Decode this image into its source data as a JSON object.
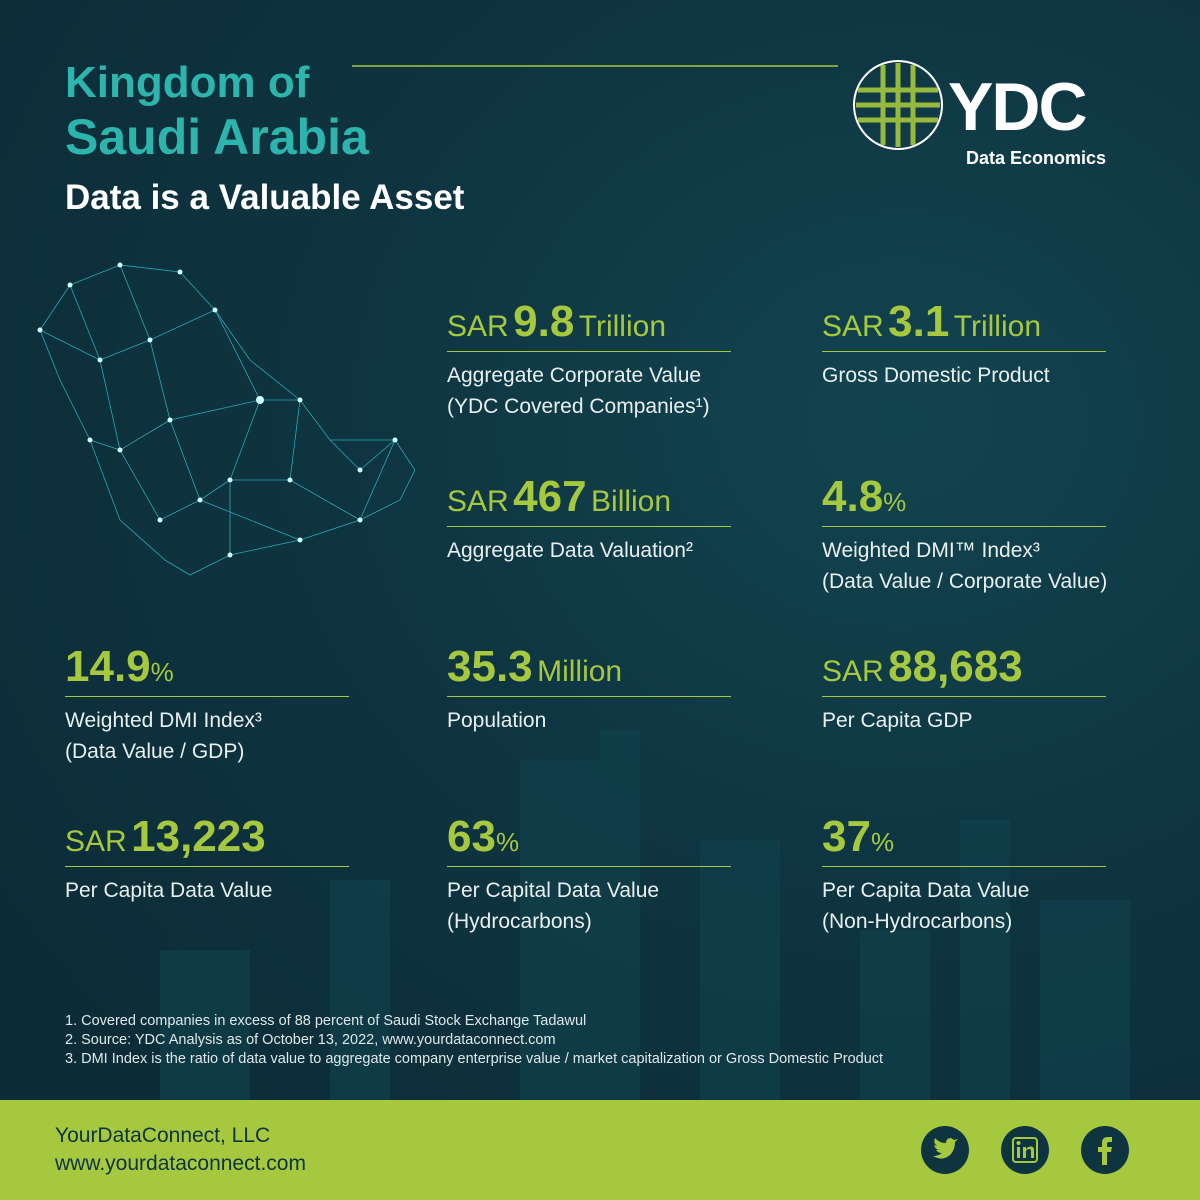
{
  "header": {
    "title_line1": "Kingdom of",
    "title_line2": "Saudi Arabia",
    "subtitle": "Data is a Valuable Asset"
  },
  "logo": {
    "name": "YDC",
    "tagline": "Data Economics"
  },
  "stats": [
    {
      "prefix": "SAR",
      "number": "9.8",
      "unit": "Trillion",
      "description": [
        "Aggregate Corporate Value",
        "(YDC Covered Companies¹)"
      ]
    },
    {
      "prefix": "SAR",
      "number": "3.1",
      "unit": "Trillion",
      "description": [
        "Gross Domestic Product"
      ]
    },
    {
      "prefix": "SAR",
      "number": "467",
      "unit": "Billion",
      "description": [
        "Aggregate Data Valuation²"
      ]
    },
    {
      "number": "4.8",
      "unit": "%",
      "description": [
        "Weighted DMI™  Index³",
        "(Data Value / Corporate Value)"
      ]
    },
    {
      "number": "14.9",
      "unit": "%",
      "description": [
        "Weighted DMI Index³",
        "(Data Value / GDP)"
      ]
    },
    {
      "number": "35.3",
      "unit": "Million",
      "description": [
        "Population"
      ]
    },
    {
      "prefix": "SAR",
      "number": "88,683",
      "description": [
        "Per Capita GDP"
      ]
    },
    {
      "prefix": "SAR",
      "number": "13,223",
      "description": [
        "Per Capita Data Value"
      ]
    },
    {
      "number": "63",
      "unit": "%",
      "description": [
        "Per Capital Data Value",
        "(Hydrocarbons)"
      ]
    },
    {
      "number": "37",
      "unit": "%",
      "description": [
        "Per Capita Data Value",
        "(Non-Hydrocarbons)"
      ]
    }
  ],
  "footnotes": [
    "1. Covered companies in excess of 88 percent of Saudi Stock Exchange Tadawul",
    "2. Source: YDC Analysis as of October 13, 2022, www.yourdataconnect.com",
    "3. DMI Index is the ratio of data value to aggregate company enterprise value / market capitalization or Gross Domestic Product"
  ],
  "footer": {
    "company": "YourDataConnect, LLC",
    "url": "www.yourdataconnect.com"
  }
}
